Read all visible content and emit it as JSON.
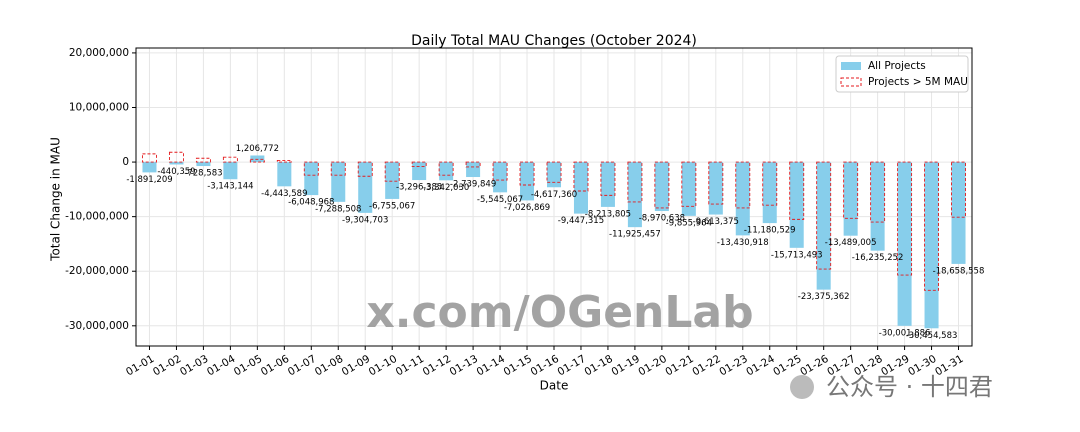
{
  "chart_data": {
    "type": "bar",
    "title": "Daily Total MAU Changes (October 2024)",
    "x_label": "Date",
    "y_label": "Total Change in MAU",
    "categories": [
      "01-01",
      "01-02",
      "01-03",
      "01-04",
      "01-05",
      "01-06",
      "01-07",
      "01-08",
      "01-09",
      "01-10",
      "01-11",
      "01-12",
      "01-13",
      "01-14",
      "01-15",
      "01-16",
      "01-17",
      "01-18",
      "01-19",
      "01-20",
      "01-21",
      "01-22",
      "01-23",
      "01-24",
      "01-25",
      "01-26",
      "01-27",
      "01-28",
      "01-29",
      "01-30",
      "01-31"
    ],
    "series": [
      {
        "name": "All Projects",
        "color": "#87ceeb",
        "style": "filled",
        "values": [
          -1891209,
          -440359,
          -728583,
          -3143144,
          1206772,
          -4443589,
          -6048968,
          -7288508,
          -9304703,
          -6755067,
          -3296383,
          -3342030,
          -2739849,
          -5545067,
          -7026869,
          -4617360,
          -9447315,
          -8213805,
          -11925457,
          -8970638,
          -9855964,
          -9613375,
          -13430918,
          -11180529,
          -15713493,
          -23375362,
          -13489005,
          -16235252,
          -30001886,
          -30454583,
          -18658558
        ],
        "value_labels": [
          "-1,891,209",
          "-440,359",
          "-728,583",
          "-3,143,144",
          "1,206,772",
          "-4,443,589",
          "-6,048,968",
          "-7,288,508",
          "-9,304,703",
          "-6,755,067",
          "-3,296,383",
          "-3,342,030",
          "-2,739,849",
          "-5,545,067",
          "-7,026,869",
          "-4,617,360",
          "-9,447,315",
          "-8,213,805",
          "-11,925,457",
          "-8,970,638",
          "-9,855,964",
          "-9,613,375",
          "-13,430,918",
          "-11,180,529",
          "-15,713,493",
          "-23,375,362",
          "-13,489,005",
          "-16,235,252",
          "-30,001,886",
          "-30,454,583",
          "-18,658,558"
        ]
      },
      {
        "name": "Projects > 5M MAU",
        "color": "#e41a1c",
        "style": "dashed-outline",
        "values": [
          1500000,
          1800000,
          700000,
          900000,
          500000,
          300000,
          -2400000,
          -2400000,
          -2600000,
          -3500000,
          -800000,
          -2400000,
          -900000,
          -3300000,
          -4200000,
          -3700000,
          -5300000,
          -6100000,
          -7300000,
          -8400000,
          -8100000,
          -7700000,
          -8400000,
          -7900000,
          -10500000,
          -19600000,
          -10300000,
          -11000000,
          -20700000,
          -23500000,
          -10100000
        ]
      }
    ],
    "ylim": [
      -33700000,
      20900000
    ],
    "yticks": [
      {
        "value": -30000000,
        "label": "-30,000,000"
      },
      {
        "value": -20000000,
        "label": "-20,000,000"
      },
      {
        "value": -10000000,
        "label": "-10,000,000"
      },
      0,
      {
        "value": 10000000,
        "label": "10,000,000"
      },
      {
        "value": 20000000,
        "label": "20,000,000"
      }
    ],
    "grid": true,
    "legend": "upper-right",
    "annotations": [
      "x.com/OGenLab",
      "公众号 · 十四君"
    ]
  }
}
